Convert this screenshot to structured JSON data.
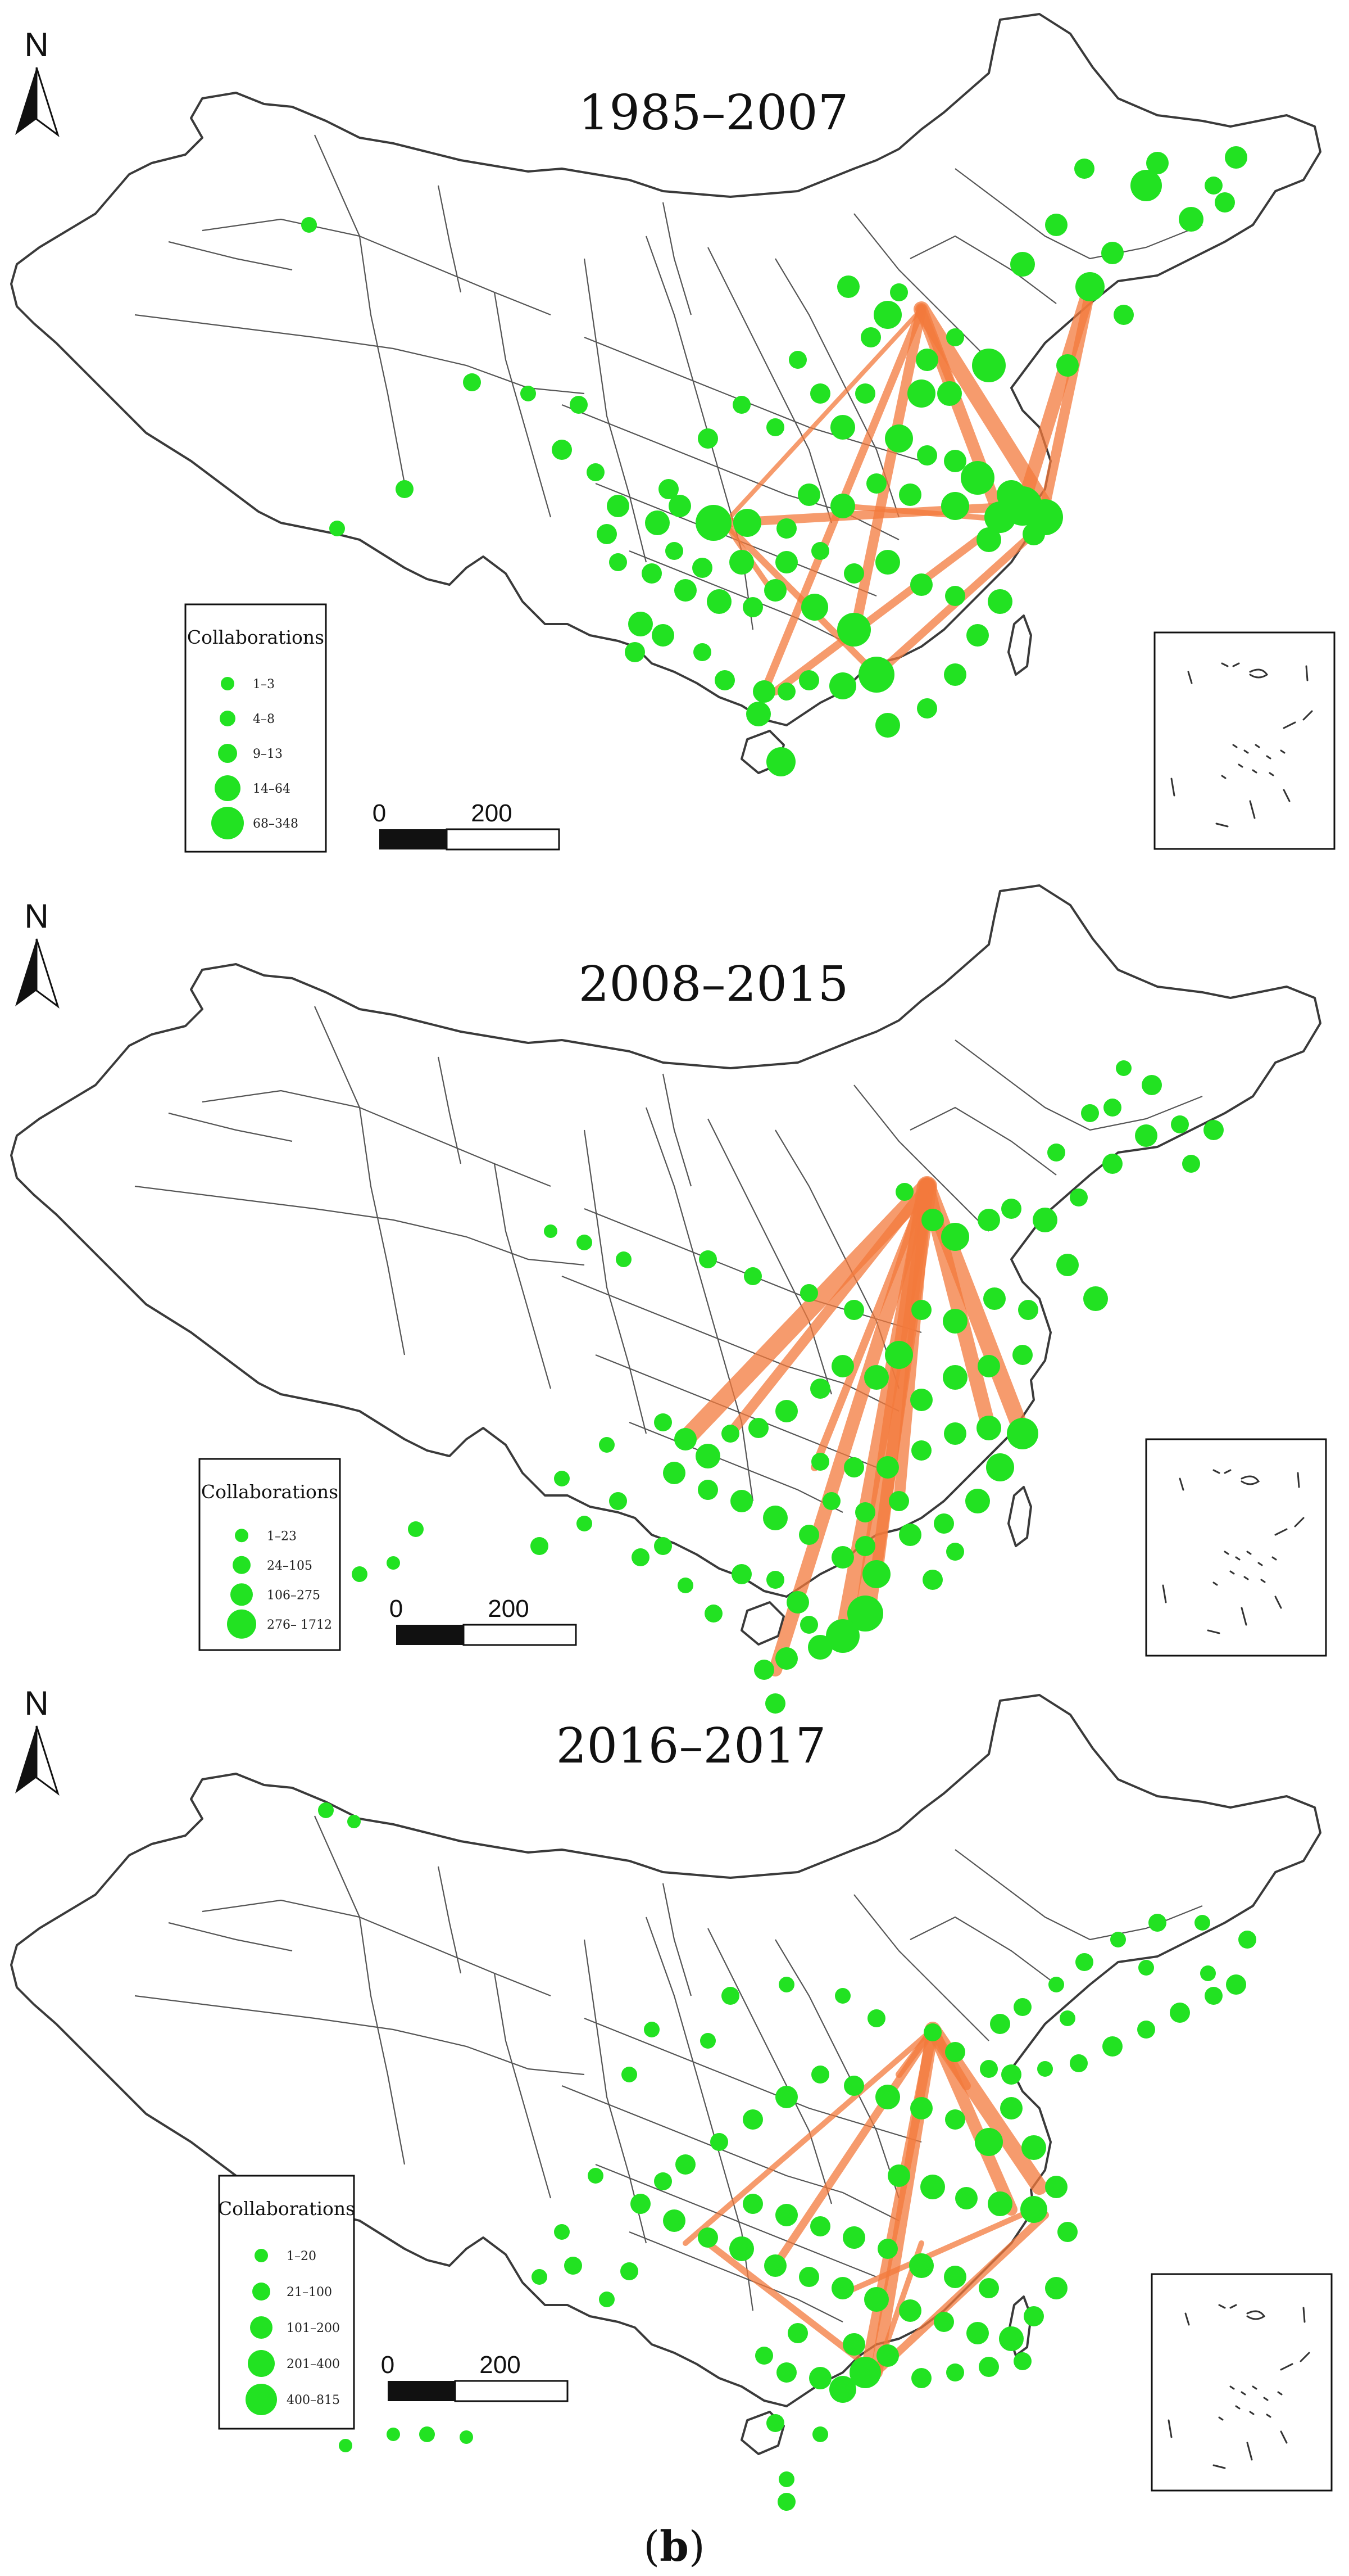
{
  "caption": {
    "open": "(",
    "letter": "b",
    "close": ")"
  },
  "colors": {
    "nodes": "#22e222",
    "flows": "#f37a3c",
    "outline": "#3a3a3a"
  },
  "icons": [
    "north-arrow-icon",
    "scale-bar-icon"
  ],
  "panels": [
    {
      "title": "1985–2007",
      "north_letter": "N",
      "legend": {
        "title": "Collaborations",
        "classes": [
          "1–3",
          "4–8",
          "9–13",
          "14–64",
          "68–348"
        ]
      },
      "scale": {
        "start": "0",
        "end": "200"
      }
    },
    {
      "title": "2008–2015",
      "north_letter": "N",
      "legend": {
        "title": "Collaborations",
        "classes": [
          "1–23",
          "24–105",
          "106–275",
          "276– 1712"
        ]
      },
      "scale": {
        "start": "0",
        "end": "200"
      }
    },
    {
      "title": "2016–2017",
      "north_letter": "N",
      "legend": {
        "title": "Collaborations",
        "classes": [
          "1–20",
          "21–100",
          "101–200",
          "201–400",
          "400–815"
        ]
      },
      "scale": {
        "start": "0",
        "end": "200"
      }
    }
  ]
}
